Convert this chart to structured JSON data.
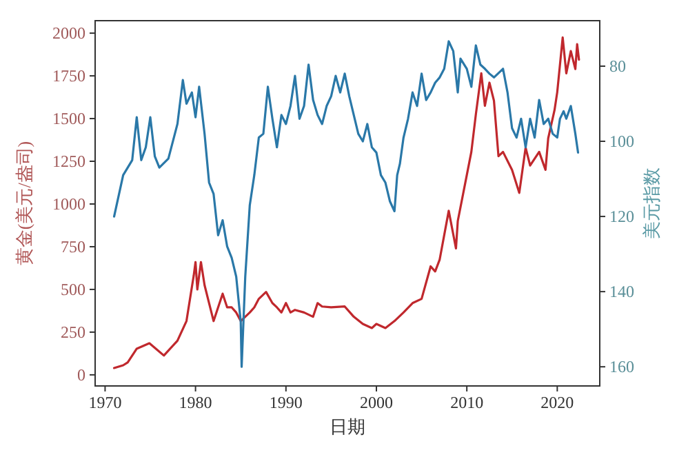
{
  "chart_data": {
    "type": "line",
    "xlabel": "日期",
    "ylabel": "黄金(美元/盎司)",
    "y2label": "美元指数",
    "xlim": [
      1968.9,
      2024.7
    ],
    "ylim": [
      -65,
      2073
    ],
    "y2lim": [
      165.1,
      67.9
    ],
    "xticks": [
      1970,
      1980,
      1990,
      2000,
      2010,
      2020
    ],
    "yticks": [
      0,
      250,
      500,
      750,
      1000,
      1250,
      1500,
      1750,
      2000
    ],
    "y2ticks": [
      80,
      100,
      120,
      140,
      160
    ],
    "series": [
      {
        "color": "#c0282d",
        "x": [
          1971,
          1972,
          1972.5,
          1973.5,
          1974.9,
          1976.5,
          1978,
          1979,
          1979.8,
          1980,
          1980.2,
          1980.6,
          1981,
          1981.5,
          1982,
          1982.5,
          1983,
          1983.5,
          1984,
          1984.5,
          1985,
          1985.5,
          1986,
          1986.5,
          1987,
          1987.8,
          1988.5,
          1989,
          1989.5,
          1990,
          1990.5,
          1991,
          1992,
          1993,
          1993.5,
          1994,
          1995,
          1996.5,
          1997.5,
          1998.5,
          1999.5,
          2000,
          2001,
          2002,
          2003,
          2004,
          2005,
          2006,
          2006.5,
          2007,
          2008,
          2008.8,
          2009,
          2010,
          2010.5,
          2011,
          2011.6,
          2012,
          2012.5,
          2013,
          2013.5,
          2014,
          2015,
          2015.8,
          2016.5,
          2017,
          2018,
          2018.7,
          2019,
          2019.7,
          2020,
          2020.6,
          2021,
          2021.5,
          2022,
          2022.2,
          2022.4
        ],
        "values": [
          40,
          56,
          73,
          153,
          185,
          113,
          200,
          315,
          580,
          660,
          500,
          660,
          525,
          420,
          315,
          395,
          475,
          395,
          395,
          365,
          315,
          340,
          365,
          395,
          445,
          485,
          420,
          395,
          365,
          420,
          365,
          380,
          365,
          340,
          420,
          400,
          395,
          400,
          340,
          298,
          274,
          298,
          274,
          315,
          365,
          420,
          445,
          635,
          605,
          675,
          960,
          740,
          900,
          1170,
          1305,
          1525,
          1765,
          1575,
          1710,
          1605,
          1280,
          1305,
          1200,
          1065,
          1330,
          1225,
          1305,
          1200,
          1385,
          1550,
          1655,
          1975,
          1765,
          1895,
          1790,
          1935,
          1845
        ]
      },
      {
        "color": "#2a78a8",
        "axis": "y2",
        "x": [
          1971,
          1972,
          1973,
          1973.5,
          1974,
          1974.5,
          1975,
          1975.5,
          1976,
          1977,
          1978,
          1978.6,
          1979,
          1979.6,
          1980,
          1980.4,
          1981,
          1981.5,
          1982,
          1982.5,
          1983,
          1983.5,
          1984,
          1984.5,
          1985,
          1985.1,
          1985.5,
          1986,
          1986.5,
          1987,
          1987.5,
          1988,
          1988.5,
          1989,
          1989.5,
          1990,
          1990.5,
          1991,
          1991.5,
          1992,
          1992.5,
          1993,
          1993.5,
          1994,
          1994.5,
          1995,
          1995.5,
          1996,
          1996.5,
          1997,
          1998,
          1998.5,
          1999,
          1999.5,
          2000,
          2000.5,
          2001,
          2001.5,
          2002,
          2002.3,
          2002.6,
          2003,
          2003.5,
          2004,
          2004.5,
          2005,
          2005.5,
          2006,
          2006.5,
          2007,
          2007.5,
          2008,
          2008.5,
          2009,
          2009.3,
          2010,
          2010.5,
          2011,
          2011.5,
          2012,
          2012.5,
          2013,
          2014,
          2014.5,
          2015,
          2015.5,
          2016,
          2016.5,
          2017,
          2017.5,
          2018,
          2018.5,
          2019,
          2019.5,
          2020,
          2020.3,
          2020.7,
          2021,
          2021.5,
          2022,
          2022.3
        ],
        "values": [
          120,
          109,
          105,
          93.6,
          105,
          101.6,
          93.6,
          104,
          107,
          104.6,
          95.4,
          83.7,
          90,
          87,
          93.6,
          85.5,
          98,
          111,
          114,
          125,
          121,
          128,
          131,
          136,
          148,
          160,
          136,
          117,
          109,
          99,
          98,
          85.5,
          94,
          101.6,
          93,
          95.4,
          90.6,
          82.6,
          94,
          90.6,
          79.6,
          89,
          93,
          95.4,
          90.6,
          88,
          82.6,
          87,
          82,
          88,
          98,
          100,
          95.4,
          101.6,
          103,
          109,
          111,
          116,
          118.6,
          109,
          106,
          99,
          94,
          87,
          90.6,
          82,
          89,
          87,
          84.4,
          83,
          80.7,
          73.4,
          76,
          87,
          78,
          80.7,
          85.5,
          74.5,
          79.6,
          80.7,
          82,
          83,
          80.7,
          87,
          96.5,
          99,
          94,
          101.6,
          94,
          99,
          89,
          95.4,
          94,
          98,
          99,
          94,
          92,
          94,
          90.6,
          98,
          103
        ]
      }
    ]
  }
}
